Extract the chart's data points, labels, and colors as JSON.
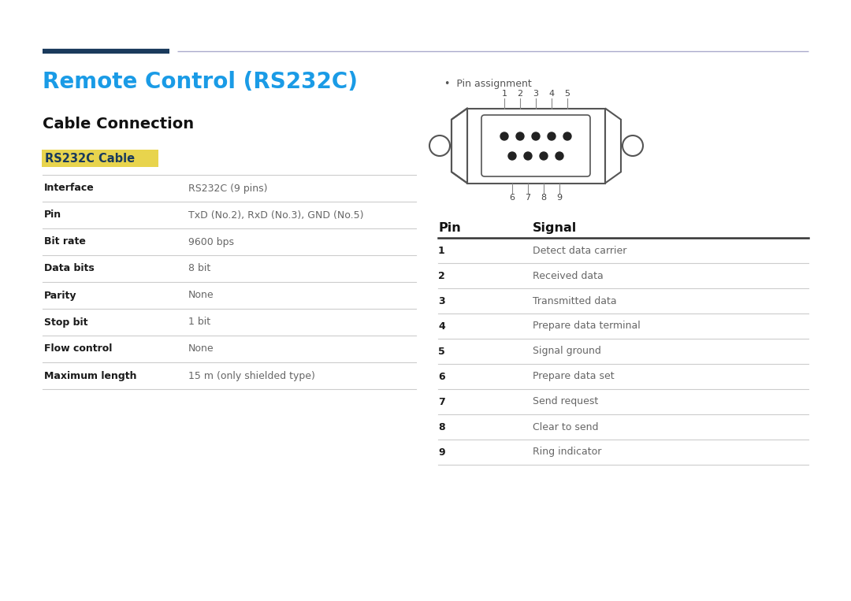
{
  "title": "Remote Control (RS232C)",
  "title_color": "#1a9be6",
  "subtitle": "Cable Connection",
  "highlight_label": "RS232C Cable",
  "highlight_bg": "#e8d44d",
  "highlight_color": "#1a3a5c",
  "cable_table": [
    [
      "Interface",
      "RS232C (9 pins)"
    ],
    [
      "Pin",
      "TxD (No.2), RxD (No.3), GND (No.5)"
    ],
    [
      "Bit rate",
      "9600 bps"
    ],
    [
      "Data bits",
      "8 bit"
    ],
    [
      "Parity",
      "None"
    ],
    [
      "Stop bit",
      "1 bit"
    ],
    [
      "Flow control",
      "None"
    ],
    [
      "Maximum length",
      "15 m (only shielded type)"
    ]
  ],
  "pin_assignment_label": "Pin assignment",
  "pin_table_header": [
    "Pin",
    "Signal"
  ],
  "pin_table": [
    [
      "1",
      "Detect data carrier"
    ],
    [
      "2",
      "Received data"
    ],
    [
      "3",
      "Transmitted data"
    ],
    [
      "4",
      "Prepare data terminal"
    ],
    [
      "5",
      "Signal ground"
    ],
    [
      "6",
      "Prepare data set"
    ],
    [
      "7",
      "Send request"
    ],
    [
      "8",
      "Clear to send"
    ],
    [
      "9",
      "Ring indicator"
    ]
  ],
  "bg_color": "#ffffff",
  "light_gray": "#cccccc",
  "dark_navy": "#1a3a5c",
  "connector_color": "#555555",
  "top_line_left_color": "#1a3a5c",
  "top_line_right_color": "#aaaacc"
}
